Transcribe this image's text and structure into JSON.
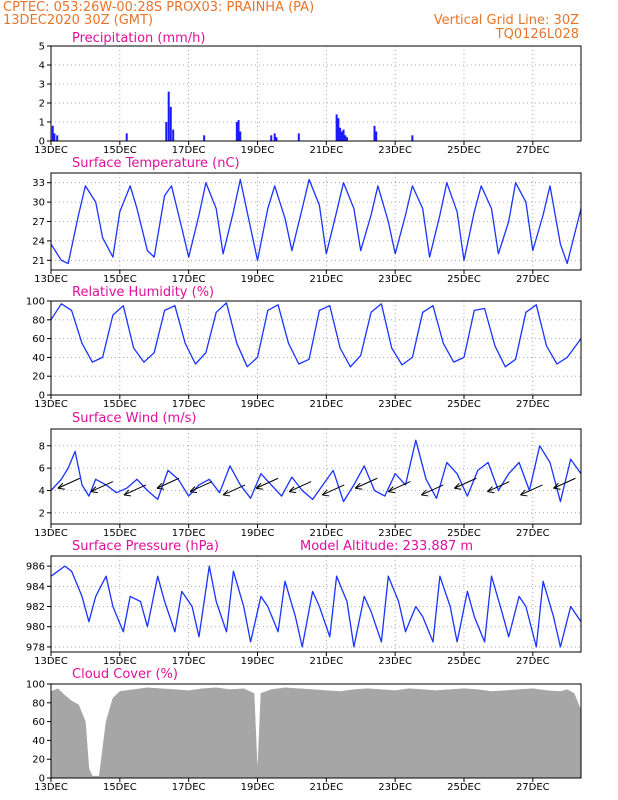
{
  "header": {
    "line1": "CPTEC:   053:26W-00:28S   PROX03: PRAINHA (PA)",
    "line2": "13DEC2020 30Z (GMT)",
    "grid_note": "Vertical Grid Line: 30Z",
    "model_code": "TQ0126L028"
  },
  "colors": {
    "header": "#e8742a",
    "panel_title": "#e0109a",
    "series": "#1a33ff",
    "cloud": "#a6a6a6",
    "precip_bar": "#1a1aff"
  },
  "chart_data": [
    {
      "id": "precip",
      "type": "bar",
      "title": "Precipitation  (mm/h)",
      "xlabel": "",
      "ylabel": "",
      "ylim": [
        0,
        5
      ],
      "yticks": [
        0,
        1,
        2,
        3,
        4,
        5
      ],
      "x_domain": [
        0,
        15.4
      ],
      "xticks": [
        "13DEC",
        "15DEC",
        "17DEC",
        "19DEC",
        "21DEC",
        "23DEC",
        "25DEC",
        "27DEC"
      ],
      "grid": true,
      "x": [
        0.05,
        0.1,
        0.18,
        2.2,
        3.35,
        3.42,
        3.48,
        3.55,
        4.45,
        5.4,
        5.45,
        5.5,
        6.4,
        6.5,
        6.55,
        7.2,
        8.3,
        8.35,
        8.4,
        8.45,
        8.5,
        8.55,
        8.6,
        9.4,
        9.45,
        10.5
      ],
      "values": [
        0.8,
        0.4,
        0.3,
        0.4,
        1.0,
        2.6,
        1.8,
        0.6,
        0.3,
        1.0,
        1.1,
        0.5,
        0.3,
        0.4,
        0.2,
        0.4,
        1.4,
        1.2,
        0.7,
        0.5,
        0.6,
        0.3,
        0.2,
        0.8,
        0.5,
        0.3
      ]
    },
    {
      "id": "temp",
      "type": "line",
      "title": "Surface Temperature  (nC)",
      "xlabel": "",
      "ylabel": "",
      "ylim": [
        19.5,
        34.5
      ],
      "yticks": [
        21,
        24,
        27,
        30,
        33
      ],
      "x_domain": [
        0,
        15.4
      ],
      "xticks": [
        "13DEC",
        "15DEC",
        "17DEC",
        "19DEC",
        "21DEC",
        "23DEC",
        "25DEC",
        "27DEC"
      ],
      "grid": true,
      "series": [
        {
          "x": [
            0,
            0.3,
            0.5,
            0.8,
            1.0,
            1.3,
            1.5,
            1.8,
            2.0,
            2.3,
            2.5,
            2.8,
            3.0,
            3.3,
            3.5,
            3.8,
            4.0,
            4.3,
            4.5,
            4.8,
            5.0,
            5.3,
            5.5,
            5.8,
            6.0,
            6.3,
            6.5,
            6.8,
            7.0,
            7.3,
            7.5,
            7.8,
            8.0,
            8.3,
            8.5,
            8.8,
            9.0,
            9.3,
            9.5,
            9.8,
            10.0,
            10.3,
            10.5,
            10.8,
            11.0,
            11.3,
            11.5,
            11.8,
            12.0,
            12.3,
            12.5,
            12.8,
            13.0,
            13.3,
            13.5,
            13.8,
            14.0,
            14.3,
            14.5,
            14.8,
            15.0,
            15.4
          ],
          "values": [
            23.5,
            21.0,
            20.5,
            28.0,
            32.5,
            30.0,
            24.5,
            21.5,
            28.5,
            32.5,
            29.0,
            22.5,
            21.5,
            31.0,
            32.5,
            26.0,
            21.5,
            28.0,
            33.0,
            29.0,
            22.0,
            28.5,
            33.5,
            26.0,
            21.0,
            29.0,
            32.5,
            27.5,
            22.5,
            29.0,
            33.5,
            29.5,
            22.0,
            28.5,
            33.0,
            29.0,
            22.5,
            28.0,
            32.5,
            27.0,
            22.0,
            28.0,
            32.5,
            29.0,
            21.5,
            28.0,
            33.0,
            28.5,
            21.0,
            28.5,
            32.5,
            29.0,
            22.0,
            27.0,
            33.0,
            30.0,
            22.5,
            28.0,
            32.5,
            23.5,
            20.5,
            29.0
          ]
        }
      ]
    },
    {
      "id": "rh",
      "type": "line",
      "title": "Relative Humidity  (%)",
      "xlabel": "",
      "ylabel": "",
      "ylim": [
        0,
        100
      ],
      "yticks": [
        0,
        20,
        40,
        60,
        80,
        100
      ],
      "x_domain": [
        0,
        15.4
      ],
      "xticks": [
        "13DEC",
        "15DEC",
        "17DEC",
        "19DEC",
        "21DEC",
        "23DEC",
        "25DEC",
        "27DEC"
      ],
      "grid": true,
      "series": [
        {
          "x": [
            0,
            0.3,
            0.6,
            0.9,
            1.2,
            1.5,
            1.8,
            2.1,
            2.4,
            2.7,
            3.0,
            3.3,
            3.6,
            3.9,
            4.2,
            4.5,
            4.8,
            5.1,
            5.4,
            5.7,
            6.0,
            6.3,
            6.6,
            6.9,
            7.2,
            7.5,
            7.8,
            8.1,
            8.4,
            8.7,
            9.0,
            9.3,
            9.6,
            9.9,
            10.2,
            10.5,
            10.8,
            11.1,
            11.4,
            11.7,
            12.0,
            12.3,
            12.6,
            12.9,
            13.2,
            13.5,
            13.8,
            14.1,
            14.4,
            14.7,
            15.0,
            15.4
          ],
          "values": [
            80,
            97,
            90,
            55,
            35,
            40,
            85,
            95,
            50,
            35,
            45,
            90,
            95,
            55,
            33,
            45,
            88,
            98,
            55,
            30,
            40,
            90,
            96,
            55,
            33,
            38,
            90,
            95,
            50,
            30,
            42,
            88,
            97,
            50,
            32,
            40,
            88,
            95,
            55,
            35,
            40,
            90,
            92,
            52,
            30,
            38,
            88,
            96,
            52,
            33,
            40,
            60
          ]
        }
      ]
    },
    {
      "id": "wind",
      "type": "line",
      "title": "Surface Wind  (m/s)",
      "xlabel": "",
      "ylabel": "",
      "ylim": [
        1,
        9.5
      ],
      "yticks": [
        2,
        4,
        6,
        8
      ],
      "x_domain": [
        0,
        15.4
      ],
      "xticks": [
        "13DEC",
        "15DEC",
        "17DEC",
        "19DEC",
        "21DEC",
        "23DEC",
        "25DEC",
        "27DEC"
      ],
      "grid": true,
      "series": [
        {
          "x": [
            0,
            0.3,
            0.5,
            0.7,
            0.9,
            1.1,
            1.3,
            1.6,
            1.9,
            2.2,
            2.5,
            2.8,
            3.1,
            3.4,
            3.7,
            4.0,
            4.3,
            4.6,
            4.9,
            5.2,
            5.5,
            5.8,
            6.1,
            6.4,
            6.7,
            7.0,
            7.3,
            7.6,
            7.9,
            8.2,
            8.5,
            8.8,
            9.1,
            9.4,
            9.7,
            10.0,
            10.3,
            10.6,
            10.9,
            11.2,
            11.5,
            11.8,
            12.1,
            12.4,
            12.7,
            13.0,
            13.3,
            13.6,
            13.9,
            14.2,
            14.5,
            14.8,
            15.1,
            15.4
          ],
          "values": [
            4.0,
            5.0,
            6.0,
            7.5,
            4.5,
            3.5,
            5.0,
            4.5,
            3.8,
            4.2,
            5.0,
            4.0,
            3.2,
            5.8,
            5.0,
            3.5,
            4.5,
            5.0,
            3.8,
            6.2,
            4.5,
            3.3,
            5.5,
            4.5,
            3.5,
            5.2,
            4.0,
            3.2,
            4.5,
            5.8,
            3.0,
            4.5,
            6.2,
            4.0,
            3.5,
            5.5,
            4.5,
            8.5,
            5.0,
            3.3,
            6.5,
            5.5,
            3.5,
            5.8,
            6.5,
            4.0,
            5.5,
            6.5,
            4.0,
            8.0,
            6.5,
            3.0,
            6.8,
            5.5
          ]
        }
      ]
    },
    {
      "id": "pressure",
      "type": "line",
      "title": "Surface Pressure  (hPa)",
      "annotation": "Model Altitude: 233.887  m",
      "xlabel": "",
      "ylabel": "",
      "ylim": [
        977.5,
        987
      ],
      "yticks": [
        978,
        980,
        982,
        984,
        986
      ],
      "x_domain": [
        0,
        15.4
      ],
      "xticks": [
        "13DEC",
        "15DEC",
        "17DEC",
        "19DEC",
        "21DEC",
        "23DEC",
        "25DEC",
        "27DEC"
      ],
      "grid": true,
      "series": [
        {
          "x": [
            0,
            0.2,
            0.4,
            0.6,
            0.9,
            1.1,
            1.3,
            1.6,
            1.8,
            2.1,
            2.3,
            2.6,
            2.8,
            3.1,
            3.3,
            3.6,
            3.8,
            4.1,
            4.3,
            4.6,
            4.8,
            5.1,
            5.3,
            5.6,
            5.8,
            6.1,
            6.3,
            6.6,
            6.8,
            7.1,
            7.3,
            7.6,
            7.8,
            8.1,
            8.3,
            8.6,
            8.8,
            9.1,
            9.3,
            9.6,
            9.8,
            10.1,
            10.3,
            10.6,
            10.8,
            11.1,
            11.3,
            11.6,
            11.8,
            12.1,
            12.3,
            12.6,
            12.8,
            13.1,
            13.3,
            13.6,
            13.8,
            14.1,
            14.3,
            14.6,
            14.8,
            15.1,
            15.4
          ],
          "values": [
            985,
            985.5,
            986,
            985.5,
            983,
            980.5,
            983,
            985,
            982,
            979.5,
            983,
            982.5,
            980,
            985,
            982.5,
            979.5,
            983.5,
            982,
            979,
            986,
            982.5,
            979.5,
            985.5,
            982,
            978.5,
            983,
            982,
            979.5,
            984.5,
            981,
            978,
            983.5,
            982,
            979,
            985,
            982.5,
            978,
            983,
            981.5,
            978.5,
            985,
            982.5,
            979.5,
            982,
            981,
            978.5,
            985,
            982,
            978.5,
            983.5,
            981,
            978.5,
            985,
            981.5,
            979,
            983,
            982,
            978,
            984.5,
            981,
            978,
            982,
            980.5
          ]
        }
      ]
    },
    {
      "id": "cloud",
      "type": "area",
      "title": "Cloud Cover  (%)",
      "xlabel": "",
      "ylabel": "",
      "ylim": [
        0,
        100
      ],
      "yticks": [
        0,
        20,
        40,
        60,
        80,
        100
      ],
      "x_domain": [
        0,
        15.4
      ],
      "xticks": [
        "13DEC",
        "15DEC",
        "17DEC",
        "19DEC",
        "21DEC",
        "23DEC",
        "25DEC",
        "27DEC"
      ],
      "grid": false,
      "series": [
        {
          "x": [
            0,
            0.2,
            0.4,
            0.6,
            0.8,
            1.0,
            1.1,
            1.2,
            1.4,
            1.6,
            1.8,
            2.0,
            2.4,
            2.8,
            3.2,
            3.6,
            4.0,
            4.4,
            4.8,
            5.2,
            5.6,
            5.9,
            6.0,
            6.1,
            6.4,
            6.8,
            7.2,
            7.6,
            8.0,
            8.4,
            8.8,
            9.2,
            9.6,
            10.0,
            10.4,
            10.8,
            11.2,
            11.6,
            12.0,
            12.4,
            12.8,
            13.2,
            13.6,
            14.0,
            14.4,
            14.8,
            15.0,
            15.2,
            15.4
          ],
          "values": [
            92,
            95,
            88,
            82,
            78,
            60,
            10,
            2,
            2,
            60,
            85,
            92,
            94,
            96,
            95,
            94,
            93,
            95,
            96,
            94,
            95,
            90,
            5,
            90,
            94,
            96,
            95,
            94,
            93,
            92,
            94,
            95,
            94,
            93,
            95,
            94,
            93,
            94,
            95,
            94,
            92,
            93,
            94,
            95,
            93,
            92,
            94,
            90,
            72
          ]
        }
      ]
    }
  ]
}
